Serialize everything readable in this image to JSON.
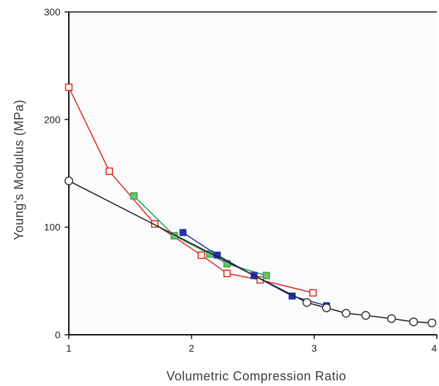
{
  "chart_data": {
    "type": "line",
    "title": "",
    "xlabel": "Volumetric Compression Ratio",
    "ylabel": "Young's Modulus (MPa)",
    "xlim": [
      1,
      4
    ],
    "ylim": [
      0,
      300
    ],
    "xticks": [
      1,
      2,
      3,
      4
    ],
    "yticks": [
      0,
      100,
      200,
      300
    ],
    "xtick_labels": [
      "1",
      "2",
      "3",
      "4"
    ],
    "ytick_labels": [
      "0",
      "100",
      "200",
      "300"
    ],
    "grid": false,
    "legend": "none",
    "series": [
      {
        "color": "#e0302a",
        "marker": "open-square",
        "x": [
          1.0,
          1.33,
          1.7,
          2.08,
          2.29,
          2.56,
          2.99
        ],
        "y": [
          230,
          152,
          103,
          74,
          57,
          51,
          39
        ]
      },
      {
        "color": "#2aa048",
        "marker": "filled-square-green",
        "x": [
          1.53,
          1.86,
          2.15,
          2.29,
          2.61
        ],
        "y": [
          129,
          92,
          75,
          66,
          55
        ]
      },
      {
        "color": "#2233aa",
        "marker": "filled-square",
        "x": [
          1.93,
          2.21,
          2.51,
          2.82,
          3.1
        ],
        "y": [
          95,
          74,
          55,
          36,
          27
        ]
      },
      {
        "color": "#222222",
        "marker": "open-circle",
        "x": [
          1.0,
          2.94,
          3.1,
          3.26,
          3.42,
          3.63,
          3.81,
          3.96
        ],
        "y": [
          143,
          30,
          25,
          20,
          18,
          15,
          12,
          11
        ]
      }
    ]
  }
}
